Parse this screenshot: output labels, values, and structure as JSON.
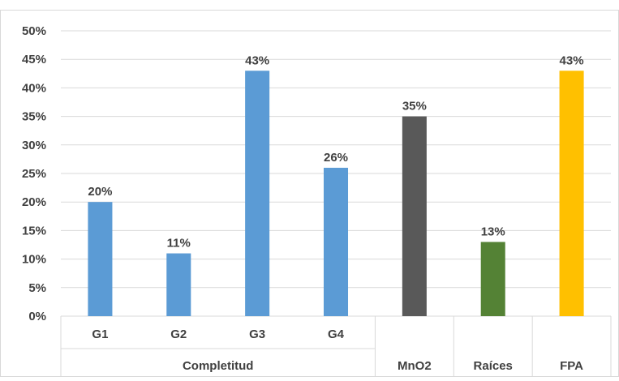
{
  "chart_data": {
    "type": "bar",
    "categories": [
      "G1",
      "G2",
      "G3",
      "G4",
      "MnO2",
      "Raíces",
      "FPA"
    ],
    "groups": [
      {
        "label": "Completitud",
        "members": [
          "G1",
          "G2",
          "G3",
          "G4"
        ]
      },
      {
        "label": "MnO2",
        "members": [
          "MnO2"
        ]
      },
      {
        "label": "Raíces",
        "members": [
          "Raíces"
        ]
      },
      {
        "label": "FPA",
        "members": [
          "FPA"
        ]
      }
    ],
    "values": [
      20,
      11,
      43,
      26,
      35,
      13,
      43
    ],
    "data_labels": [
      "20%",
      "11%",
      "43%",
      "26%",
      "35%",
      "13%",
      "43%"
    ],
    "bar_colors": [
      "#5b9bd5",
      "#5b9bd5",
      "#5b9bd5",
      "#5b9bd5",
      "#595959",
      "#548235",
      "#ffc000"
    ],
    "ylim": [
      0,
      50
    ],
    "y_ticks": [
      "0%",
      "5%",
      "10%",
      "15%",
      "20%",
      "25%",
      "30%",
      "35%",
      "40%",
      "45%",
      "50%"
    ],
    "grid": true,
    "legend": "none"
  }
}
